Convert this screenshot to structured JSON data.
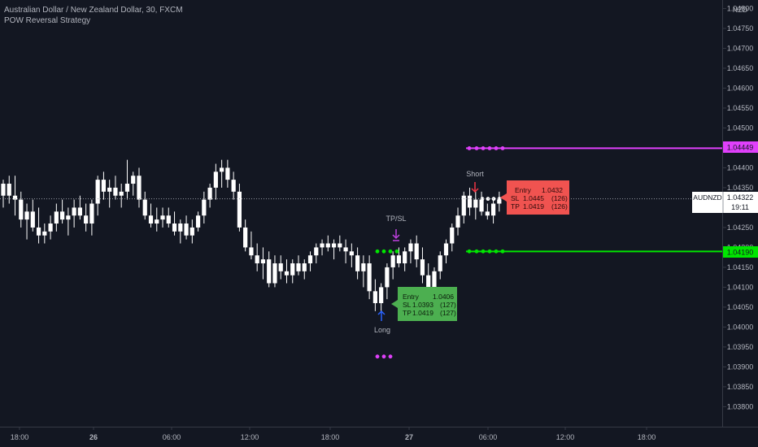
{
  "header": {
    "symbol_title": "Australian Dollar / New Zealand Dollar, 30, FXCM",
    "indicator_name": "POW Reversal Strategy"
  },
  "price_axis": {
    "currency": "NZD",
    "ticks": [
      "1.04800",
      "1.04750",
      "1.04700",
      "1.04650",
      "1.04600",
      "1.04550",
      "1.04500",
      "1.04450",
      "1.04400",
      "1.04350",
      "1.04300",
      "1.04250",
      "1.04200",
      "1.04150",
      "1.04100",
      "1.04050",
      "1.04000",
      "1.03950",
      "1.03900",
      "1.03850",
      "1.03800"
    ],
    "last_price_label": "AUDNZD",
    "last_price": "1.04322",
    "countdown": "19:11",
    "stop_level_label": "1.04449",
    "target_level_label": "1.04190"
  },
  "time_axis": {
    "ticks": [
      "18:00",
      "26",
      "06:00",
      "12:00",
      "18:00",
      "27",
      "06:00",
      "12:00",
      "18:00"
    ]
  },
  "annotations": {
    "long_label": "Long",
    "short_label": "Short",
    "tpsl_label": "TP/SL",
    "long_box": {
      "entry_label": "Entry",
      "entry_value": "1.0406",
      "sl_label": "SL",
      "sl_value": "1.0393",
      "sl_pips": "(127)",
      "tp_label": "TP",
      "tp_value": "1.0419",
      "tp_pips": "(127)"
    },
    "short_box": {
      "entry_label": "Entry",
      "entry_value": "1.0432",
      "sl_label": "SL",
      "sl_value": "1.0445",
      "sl_pips": "(126)",
      "tp_label": "TP",
      "tp_value": "1.0419",
      "tp_pips": "(126)"
    }
  },
  "colors": {
    "background": "#131722",
    "candle": "#ffffff",
    "stop_line": "#e040fb",
    "target_line": "#00e600",
    "long_box": "#4caf50",
    "short_box": "#f05350",
    "long_arrow": "#2962ff",
    "short_arrow": "#f23645",
    "tpsl_marker": "#c040e0",
    "axis_text": "#b2b5be"
  },
  "chart_data": {
    "type": "candlestick",
    "symbol": "AUDNZD",
    "timeframe": "30",
    "title": "Australian Dollar / New Zealand Dollar, 30, FXCM",
    "ylim": [
      1.0376,
      1.04805
    ],
    "grid": false,
    "levels": {
      "stop": 1.04449,
      "target": 1.0419,
      "last": 1.04322
    },
    "candles": [
      {
        "o": 1.0433,
        "h": 1.0437,
        "l": 1.043,
        "c": 1.0436
      },
      {
        "o": 1.0436,
        "h": 1.0438,
        "l": 1.0431,
        "c": 1.0433
      },
      {
        "o": 1.0433,
        "h": 1.0438,
        "l": 1.0428,
        "c": 1.0432
      },
      {
        "o": 1.0432,
        "h": 1.0434,
        "l": 1.0425,
        "c": 1.0427
      },
      {
        "o": 1.0427,
        "h": 1.0431,
        "l": 1.0422,
        "c": 1.0429
      },
      {
        "o": 1.0429,
        "h": 1.0432,
        "l": 1.0424,
        "c": 1.0425
      },
      {
        "o": 1.0425,
        "h": 1.043,
        "l": 1.0421,
        "c": 1.0423
      },
      {
        "o": 1.0423,
        "h": 1.0426,
        "l": 1.0421,
        "c": 1.0424
      },
      {
        "o": 1.0424,
        "h": 1.0428,
        "l": 1.0422,
        "c": 1.0426
      },
      {
        "o": 1.0426,
        "h": 1.0431,
        "l": 1.0424,
        "c": 1.0429
      },
      {
        "o": 1.0429,
        "h": 1.0432,
        "l": 1.0426,
        "c": 1.0427
      },
      {
        "o": 1.0427,
        "h": 1.043,
        "l": 1.0423,
        "c": 1.0428
      },
      {
        "o": 1.0428,
        "h": 1.0432,
        "l": 1.0425,
        "c": 1.043
      },
      {
        "o": 1.043,
        "h": 1.0433,
        "l": 1.0427,
        "c": 1.0428
      },
      {
        "o": 1.0428,
        "h": 1.0431,
        "l": 1.0424,
        "c": 1.0426
      },
      {
        "o": 1.0426,
        "h": 1.0432,
        "l": 1.0423,
        "c": 1.0431
      },
      {
        "o": 1.0431,
        "h": 1.0438,
        "l": 1.0428,
        "c": 1.0437
      },
      {
        "o": 1.0437,
        "h": 1.0439,
        "l": 1.0432,
        "c": 1.0434
      },
      {
        "o": 1.0434,
        "h": 1.0437,
        "l": 1.043,
        "c": 1.0435
      },
      {
        "o": 1.0435,
        "h": 1.0438,
        "l": 1.0432,
        "c": 1.0433
      },
      {
        "o": 1.0433,
        "h": 1.0436,
        "l": 1.043,
        "c": 1.0434
      },
      {
        "o": 1.0434,
        "h": 1.0442,
        "l": 1.0432,
        "c": 1.0436
      },
      {
        "o": 1.0436,
        "h": 1.0439,
        "l": 1.0433,
        "c": 1.0438
      },
      {
        "o": 1.0438,
        "h": 1.044,
        "l": 1.043,
        "c": 1.0432
      },
      {
        "o": 1.0432,
        "h": 1.0434,
        "l": 1.0427,
        "c": 1.0428
      },
      {
        "o": 1.0428,
        "h": 1.0431,
        "l": 1.0425,
        "c": 1.0426
      },
      {
        "o": 1.0426,
        "h": 1.043,
        "l": 1.0424,
        "c": 1.0427
      },
      {
        "o": 1.0427,
        "h": 1.043,
        "l": 1.0425,
        "c": 1.0428
      },
      {
        "o": 1.0428,
        "h": 1.043,
        "l": 1.0425,
        "c": 1.0426
      },
      {
        "o": 1.0426,
        "h": 1.0429,
        "l": 1.0423,
        "c": 1.0424
      },
      {
        "o": 1.0424,
        "h": 1.0427,
        "l": 1.0421,
        "c": 1.0426
      },
      {
        "o": 1.0426,
        "h": 1.0428,
        "l": 1.0422,
        "c": 1.0423
      },
      {
        "o": 1.0423,
        "h": 1.0427,
        "l": 1.0421,
        "c": 1.0425
      },
      {
        "o": 1.0425,
        "h": 1.0429,
        "l": 1.0424,
        "c": 1.0428
      },
      {
        "o": 1.0428,
        "h": 1.0434,
        "l": 1.0426,
        "c": 1.0432
      },
      {
        "o": 1.0432,
        "h": 1.0436,
        "l": 1.043,
        "c": 1.0435
      },
      {
        "o": 1.0435,
        "h": 1.0441,
        "l": 1.0432,
        "c": 1.0439
      },
      {
        "o": 1.0439,
        "h": 1.0442,
        "l": 1.0435,
        "c": 1.044
      },
      {
        "o": 1.044,
        "h": 1.0442,
        "l": 1.0435,
        "c": 1.0437
      },
      {
        "o": 1.0437,
        "h": 1.0439,
        "l": 1.0432,
        "c": 1.0434
      },
      {
        "o": 1.0434,
        "h": 1.0436,
        "l": 1.0424,
        "c": 1.0425
      },
      {
        "o": 1.0425,
        "h": 1.0427,
        "l": 1.0419,
        "c": 1.042
      },
      {
        "o": 1.042,
        "h": 1.0424,
        "l": 1.0417,
        "c": 1.0418
      },
      {
        "o": 1.0418,
        "h": 1.0421,
        "l": 1.0414,
        "c": 1.0416
      },
      {
        "o": 1.0416,
        "h": 1.042,
        "l": 1.0412,
        "c": 1.0417
      },
      {
        "o": 1.0417,
        "h": 1.0419,
        "l": 1.041,
        "c": 1.0411
      },
      {
        "o": 1.0411,
        "h": 1.0418,
        "l": 1.041,
        "c": 1.0416
      },
      {
        "o": 1.0416,
        "h": 1.0418,
        "l": 1.0412,
        "c": 1.0414
      },
      {
        "o": 1.0414,
        "h": 1.0417,
        "l": 1.0411,
        "c": 1.0413
      },
      {
        "o": 1.0413,
        "h": 1.0417,
        "l": 1.0411,
        "c": 1.0416
      },
      {
        "o": 1.0416,
        "h": 1.0418,
        "l": 1.0413,
        "c": 1.0414
      },
      {
        "o": 1.0414,
        "h": 1.0417,
        "l": 1.0412,
        "c": 1.0416
      },
      {
        "o": 1.0416,
        "h": 1.0419,
        "l": 1.0414,
        "c": 1.0418
      },
      {
        "o": 1.0418,
        "h": 1.0421,
        "l": 1.0416,
        "c": 1.042
      },
      {
        "o": 1.042,
        "h": 1.0422,
        "l": 1.0418,
        "c": 1.0421
      },
      {
        "o": 1.0421,
        "h": 1.0423,
        "l": 1.0419,
        "c": 1.042
      },
      {
        "o": 1.042,
        "h": 1.0422,
        "l": 1.0417,
        "c": 1.0421
      },
      {
        "o": 1.0421,
        "h": 1.0423,
        "l": 1.0419,
        "c": 1.042
      },
      {
        "o": 1.042,
        "h": 1.0422,
        "l": 1.0416,
        "c": 1.0419
      },
      {
        "o": 1.0419,
        "h": 1.0421,
        "l": 1.0415,
        "c": 1.0418
      },
      {
        "o": 1.0418,
        "h": 1.042,
        "l": 1.0412,
        "c": 1.0414
      },
      {
        "o": 1.0414,
        "h": 1.0418,
        "l": 1.041,
        "c": 1.0416
      },
      {
        "o": 1.0416,
        "h": 1.0418,
        "l": 1.0407,
        "c": 1.0409
      },
      {
        "o": 1.0409,
        "h": 1.0412,
        "l": 1.0404,
        "c": 1.0406
      },
      {
        "o": 1.0406,
        "h": 1.0411,
        "l": 1.0404,
        "c": 1.041
      },
      {
        "o": 1.041,
        "h": 1.0416,
        "l": 1.0407,
        "c": 1.0415
      },
      {
        "o": 1.0415,
        "h": 1.0419,
        "l": 1.0412,
        "c": 1.0418
      },
      {
        "o": 1.0418,
        "h": 1.042,
        "l": 1.0415,
        "c": 1.0416
      },
      {
        "o": 1.0416,
        "h": 1.042,
        "l": 1.0414,
        "c": 1.0419
      },
      {
        "o": 1.0419,
        "h": 1.0422,
        "l": 1.0416,
        "c": 1.0421
      },
      {
        "o": 1.0421,
        "h": 1.0423,
        "l": 1.0415,
        "c": 1.0417
      },
      {
        "o": 1.0417,
        "h": 1.042,
        "l": 1.0411,
        "c": 1.0413
      },
      {
        "o": 1.0413,
        "h": 1.0416,
        "l": 1.0409,
        "c": 1.041
      },
      {
        "o": 1.041,
        "h": 1.0415,
        "l": 1.0408,
        "c": 1.0414
      },
      {
        "o": 1.0414,
        "h": 1.0419,
        "l": 1.0412,
        "c": 1.0418
      },
      {
        "o": 1.0418,
        "h": 1.0422,
        "l": 1.0416,
        "c": 1.0421
      },
      {
        "o": 1.0421,
        "h": 1.0426,
        "l": 1.0419,
        "c": 1.0425
      },
      {
        "o": 1.0425,
        "h": 1.043,
        "l": 1.0423,
        "c": 1.0428
      },
      {
        "o": 1.0428,
        "h": 1.0434,
        "l": 1.0426,
        "c": 1.0433
      },
      {
        "o": 1.0433,
        "h": 1.0435,
        "l": 1.0428,
        "c": 1.043
      },
      {
        "o": 1.043,
        "h": 1.0434,
        "l": 1.0427,
        "c": 1.0432
      },
      {
        "o": 1.0432,
        "h": 1.0434,
        "l": 1.0428,
        "c": 1.0429
      },
      {
        "o": 1.0429,
        "h": 1.0431,
        "l": 1.0427,
        "c": 1.0428
      },
      {
        "o": 1.0428,
        "h": 1.0432,
        "l": 1.0426,
        "c": 1.0431
      },
      {
        "o": 1.0431,
        "h": 1.0434,
        "l": 1.0429,
        "c": 1.0432
      }
    ]
  }
}
